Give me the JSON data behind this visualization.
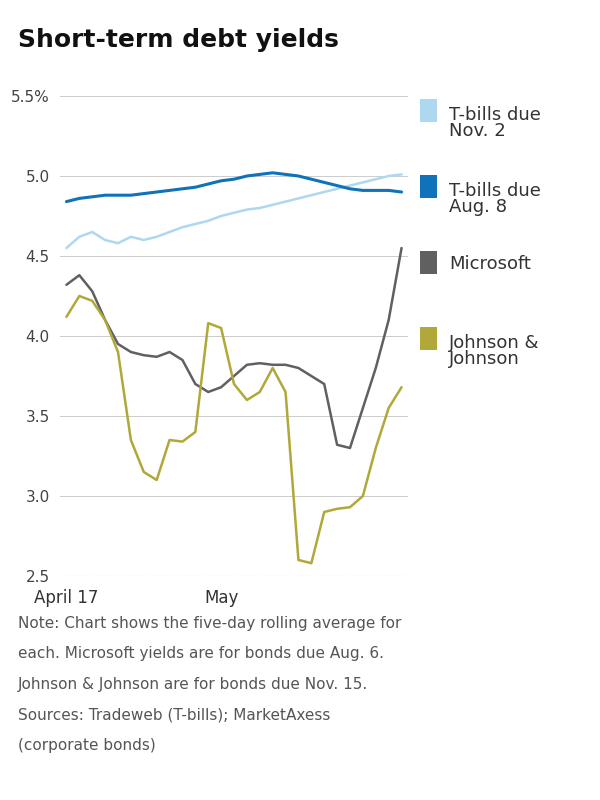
{
  "title": "Short-term debt yields",
  "ylim": [
    2.5,
    5.5
  ],
  "yticks": [
    2.5,
    3.0,
    3.5,
    4.0,
    4.5,
    5.0,
    5.5
  ],
  "ytick_labels": [
    "2.5",
    "3.0",
    "3.5",
    "4.0",
    "4.5",
    "5.0",
    "5.5%"
  ],
  "xlabel_ticks_labels": [
    "April 17",
    "May"
  ],
  "xlabel_ticks_pos": [
    0,
    12
  ],
  "note_lines": [
    "Note: Chart shows the five-day rolling average for",
    "each. Microsoft yields are for bonds due Aug. 6.",
    "Johnson & Johnson are for bonds due Nov. 15.",
    "Sources: Tradeweb (T-bills); MarketAxess",
    "(corporate bonds)"
  ],
  "series": {
    "tbills_nov2": {
      "label1": "T-bills due",
      "label2": "Nov. 2",
      "color": "#add8f0",
      "linewidth": 1.8,
      "values": [
        4.55,
        4.62,
        4.65,
        4.6,
        4.58,
        4.62,
        4.6,
        4.62,
        4.65,
        4.68,
        4.7,
        4.72,
        4.75,
        4.77,
        4.79,
        4.8,
        4.82,
        4.84,
        4.86,
        4.88,
        4.9,
        4.92,
        4.94,
        4.96,
        4.98,
        5.0,
        5.01
      ]
    },
    "tbills_aug8": {
      "label1": "T-bills due",
      "label2": "Aug. 8",
      "color": "#1072b8",
      "linewidth": 2.2,
      "values": [
        4.84,
        4.86,
        4.87,
        4.88,
        4.88,
        4.88,
        4.89,
        4.9,
        4.91,
        4.92,
        4.93,
        4.95,
        4.97,
        4.98,
        5.0,
        5.01,
        5.02,
        5.01,
        5.0,
        4.98,
        4.96,
        4.94,
        4.92,
        4.91,
        4.91,
        4.91,
        4.9
      ]
    },
    "microsoft": {
      "label1": "Microsoft",
      "label2": "",
      "color": "#606060",
      "linewidth": 1.8,
      "values": [
        4.32,
        4.38,
        4.28,
        4.1,
        3.95,
        3.9,
        3.88,
        3.87,
        3.9,
        3.85,
        3.7,
        3.65,
        3.68,
        3.75,
        3.82,
        3.83,
        3.82,
        3.82,
        3.8,
        3.75,
        3.7,
        3.32,
        3.3,
        3.55,
        3.8,
        4.1,
        4.55
      ]
    },
    "jnj": {
      "label1": "Johnson &",
      "label2": "Johnson",
      "color": "#b0a838",
      "linewidth": 1.8,
      "values": [
        4.12,
        4.25,
        4.22,
        4.1,
        3.9,
        3.35,
        3.15,
        3.1,
        3.35,
        3.34,
        3.4,
        4.08,
        4.05,
        3.7,
        3.6,
        3.65,
        3.8,
        3.65,
        2.6,
        2.58,
        2.9,
        2.92,
        2.93,
        3.0,
        3.3,
        3.55,
        3.68
      ]
    }
  },
  "n_points": 27,
  "background_color": "#ffffff",
  "grid_color": "#cccccc",
  "title_fontsize": 18,
  "axis_fontsize": 11,
  "note_fontsize": 11,
  "legend_fontsize": 13
}
